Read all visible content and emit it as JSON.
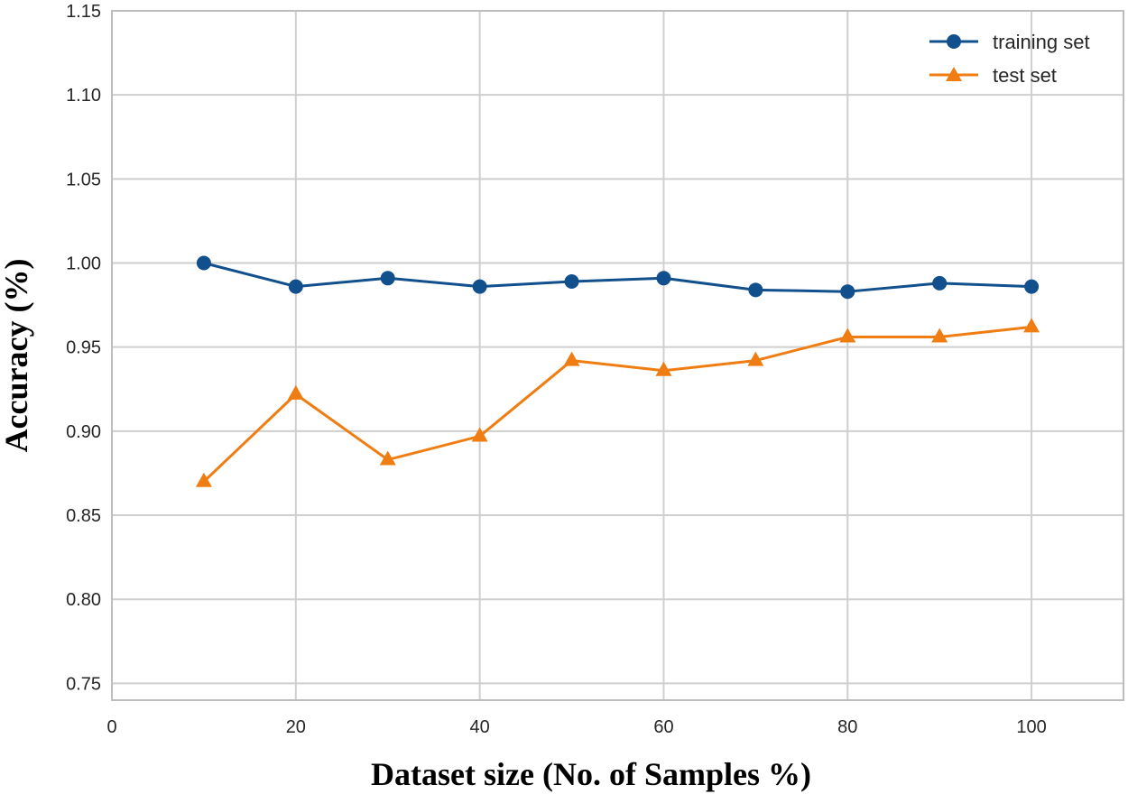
{
  "chart_data": {
    "type": "line",
    "title": "",
    "xlabel": "Dataset size (No. of Samples %)",
    "ylabel": "Accuracy (%)",
    "xlim": [
      0,
      110
    ],
    "ylim": [
      0.74,
      1.15
    ],
    "x_ticks": [
      0,
      20,
      40,
      60,
      80,
      100
    ],
    "x_tick_labels": [
      "0",
      "20",
      "40",
      "60",
      "80",
      "100"
    ],
    "y_ticks": [
      0.75,
      0.8,
      0.85,
      0.9,
      0.95,
      1.0,
      1.05,
      1.1,
      1.15
    ],
    "y_tick_labels": [
      "0.75",
      "0.80",
      "0.85",
      "0.90",
      "0.95",
      "1.00",
      "1.05",
      "1.10",
      "1.15"
    ],
    "grid": true,
    "legend_position": "top-right",
    "x": [
      10,
      20,
      30,
      40,
      50,
      60,
      70,
      80,
      90,
      100
    ],
    "series": [
      {
        "name": "training set",
        "color": "#11508c",
        "marker": "circle",
        "values": [
          1.0,
          0.986,
          0.991,
          0.986,
          0.989,
          0.991,
          0.984,
          0.983,
          0.988,
          0.986
        ]
      },
      {
        "name": "test set",
        "color": "#f07d12",
        "marker": "triangle",
        "values": [
          0.87,
          0.922,
          0.883,
          0.897,
          0.942,
          0.936,
          0.942,
          0.956,
          0.956,
          0.962
        ]
      }
    ]
  }
}
